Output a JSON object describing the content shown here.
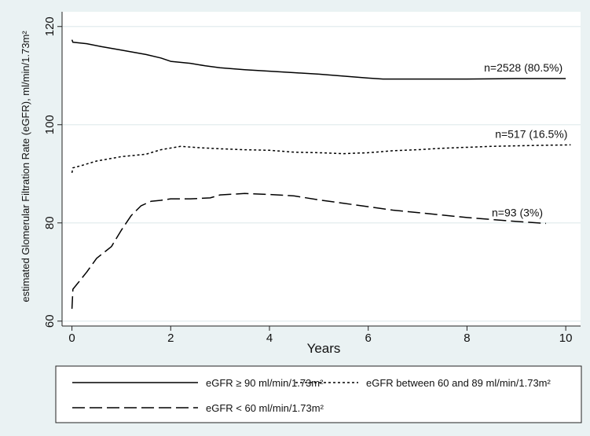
{
  "chart_data": {
    "type": "line",
    "title": "",
    "xlabel": "Years",
    "ylabel": "estimated Glomerular Filtration Rate (eGFR), ml/min/1.73m²",
    "xlim": [
      -0.2,
      10.3
    ],
    "ylim": [
      59,
      123
    ],
    "x_ticks": [
      0,
      2,
      4,
      6,
      8,
      10
    ],
    "y_ticks": [
      60,
      80,
      100,
      120
    ],
    "grid": "horizontal",
    "legend_position": "bottom",
    "series": [
      {
        "name": "eGFR ≥ 90 ml/min/1.73m²",
        "line_style": "solid",
        "annotation": "n=2528 (80.5%)",
        "points": [
          [
            0,
            117.3
          ],
          [
            0.02,
            116.8
          ],
          [
            0.3,
            116.5
          ],
          [
            0.6,
            115.9
          ],
          [
            1.0,
            115.2
          ],
          [
            1.5,
            114.3
          ],
          [
            1.8,
            113.6
          ],
          [
            2.0,
            112.9
          ],
          [
            2.4,
            112.5
          ],
          [
            2.7,
            112.0
          ],
          [
            3.0,
            111.6
          ],
          [
            3.5,
            111.2
          ],
          [
            4.0,
            110.9
          ],
          [
            4.5,
            110.6
          ],
          [
            5.0,
            110.3
          ],
          [
            5.5,
            109.9
          ],
          [
            6.0,
            109.5
          ],
          [
            6.3,
            109.3
          ],
          [
            7.0,
            109.3
          ],
          [
            8.0,
            109.3
          ],
          [
            9.0,
            109.4
          ],
          [
            10.0,
            109.4
          ]
        ]
      },
      {
        "name": "eGFR between 60 and 89 ml/min/1.73m²",
        "line_style": "dotted",
        "annotation": "n=517 (16.5%)",
        "points": [
          [
            0,
            90.2
          ],
          [
            0.02,
            91.2
          ],
          [
            0.2,
            91.7
          ],
          [
            0.5,
            92.6
          ],
          [
            1.0,
            93.5
          ],
          [
            1.5,
            94.0
          ],
          [
            1.8,
            94.9
          ],
          [
            2.2,
            95.6
          ],
          [
            2.6,
            95.3
          ],
          [
            3.0,
            95.1
          ],
          [
            3.5,
            94.9
          ],
          [
            4.0,
            94.8
          ],
          [
            4.5,
            94.4
          ],
          [
            5.0,
            94.3
          ],
          [
            5.5,
            94.1
          ],
          [
            6.0,
            94.3
          ],
          [
            6.5,
            94.7
          ],
          [
            7.0,
            94.9
          ],
          [
            7.5,
            95.2
          ],
          [
            8.0,
            95.4
          ],
          [
            8.5,
            95.6
          ],
          [
            9.0,
            95.7
          ],
          [
            9.5,
            95.8
          ],
          [
            10.1,
            95.9
          ]
        ]
      },
      {
        "name": "eGFR < 60 ml/min/1.73m²",
        "line_style": "dashed",
        "annotation": "n=93 (3%)",
        "points": [
          [
            0,
            62.5
          ],
          [
            0.02,
            66.5
          ],
          [
            0.1,
            67.5
          ],
          [
            0.3,
            70.0
          ],
          [
            0.5,
            72.8
          ],
          [
            0.8,
            75.2
          ],
          [
            1.0,
            78.5
          ],
          [
            1.2,
            81.5
          ],
          [
            1.4,
            83.5
          ],
          [
            1.6,
            84.4
          ],
          [
            1.8,
            84.6
          ],
          [
            2.0,
            84.9
          ],
          [
            2.4,
            84.9
          ],
          [
            2.8,
            85.1
          ],
          [
            3.0,
            85.7
          ],
          [
            3.5,
            86.0
          ],
          [
            4.0,
            85.8
          ],
          [
            4.5,
            85.5
          ],
          [
            5.0,
            84.7
          ],
          [
            5.5,
            84.0
          ],
          [
            6.0,
            83.3
          ],
          [
            6.5,
            82.6
          ],
          [
            7.0,
            82.1
          ],
          [
            7.5,
            81.6
          ],
          [
            8.0,
            81.1
          ],
          [
            8.5,
            80.7
          ],
          [
            9.0,
            80.3
          ],
          [
            9.6,
            79.9
          ]
        ]
      }
    ]
  }
}
